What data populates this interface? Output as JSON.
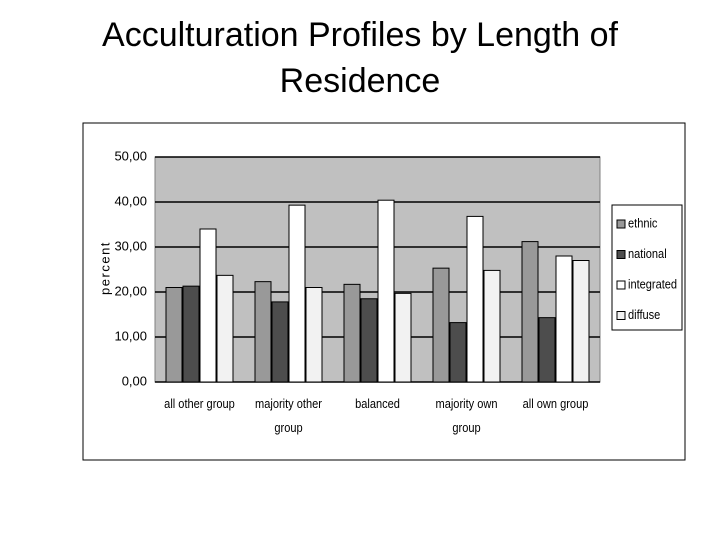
{
  "chart_data": {
    "type": "bar",
    "title": "Acculturation Profiles by Length of Residence",
    "y_label": "percent",
    "categories": [
      "all other group",
      "majority other group",
      "balanced",
      "majority own group",
      "all own group"
    ],
    "series": [
      {
        "name": "ethnic",
        "color": "#999999",
        "values": [
          21,
          22.3,
          21.7,
          25.3,
          31.2
        ]
      },
      {
        "name": "national",
        "color": "#4d4d4d",
        "values": [
          21.3,
          17.8,
          18.5,
          13.2,
          14.3
        ]
      },
      {
        "name": "integrated",
        "color": "#ffffff",
        "values": [
          34,
          39.3,
          40.4,
          36.8,
          28
        ]
      },
      {
        "name": "diffuse",
        "color": "#f2f2f2",
        "values": [
          23.7,
          21,
          19.7,
          24.8,
          27
        ]
      }
    ],
    "ylim": [
      0,
      50
    ],
    "yticks": [
      {
        "value": 0,
        "label": "0,00"
      },
      {
        "value": 10,
        "label": "10,00"
      },
      {
        "value": 20,
        "label": "20,00"
      },
      {
        "value": 30,
        "label": "30,00"
      },
      {
        "value": 40,
        "label": "40,00"
      },
      {
        "value": 50,
        "label": "50,00"
      }
    ],
    "grid": true,
    "legend": "right"
  }
}
